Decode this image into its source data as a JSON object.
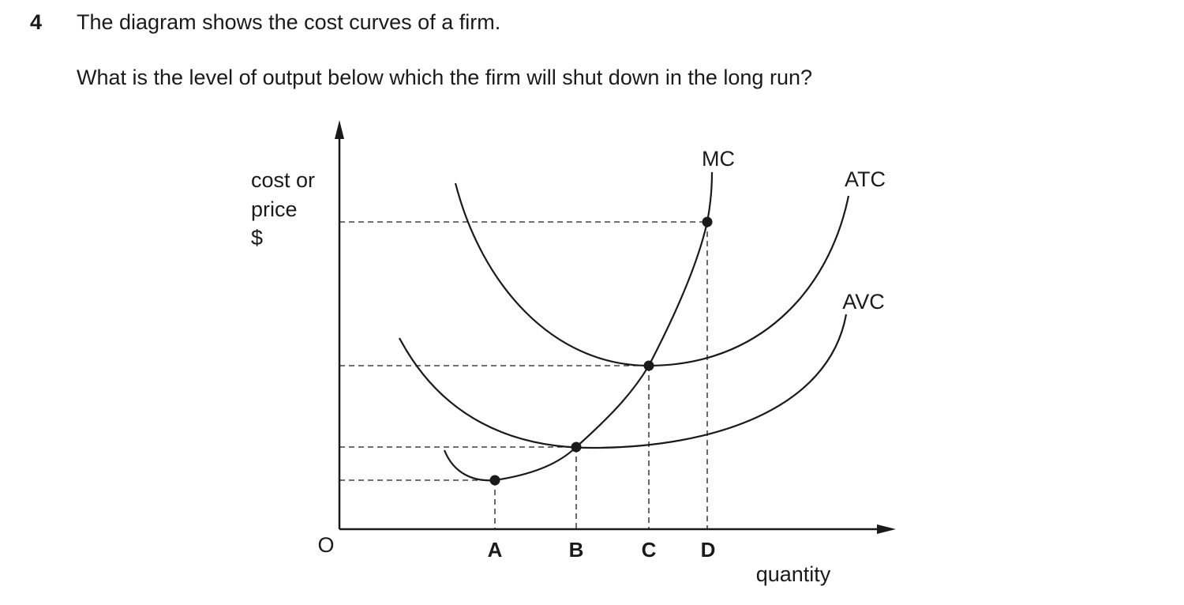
{
  "question": {
    "number": "4",
    "text": "The diagram shows the cost curves of a firm.",
    "prompt": "What is the level of output below which the firm will shut down in the long run?"
  },
  "diagram": {
    "y_axis_label": [
      "cost or",
      "price",
      "$"
    ],
    "x_axis_label": "quantity",
    "origin": "O",
    "curves": [
      "MC",
      "ATC",
      "AVC"
    ],
    "points": [
      "A",
      "B",
      "C",
      "D"
    ]
  }
}
